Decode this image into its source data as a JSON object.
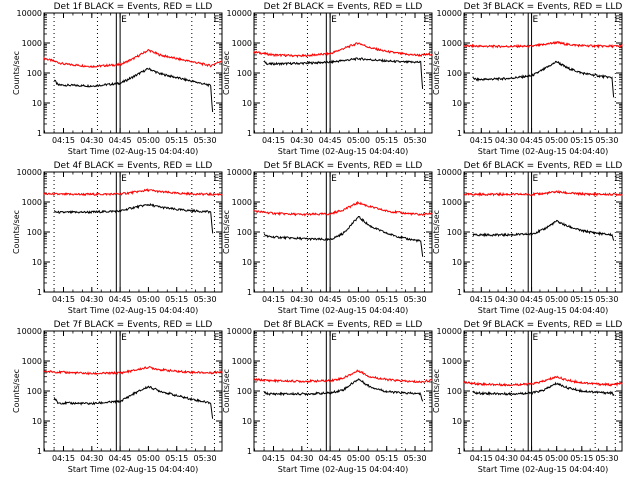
{
  "chart_data": [
    {
      "type": "line",
      "title": "Det 1f BLACK = Events, RED = LLD",
      "xlabel": "Start Time (02-Aug-15 04:04:40)",
      "ylabel": "Counts/sec",
      "y_scale": "log",
      "ylim": [
        1,
        10000
      ],
      "xlim": [
        "04:04:40",
        "05:39:00"
      ],
      "x_ticks": [
        "04:15",
        "04:30",
        "04:45",
        "05:00",
        "05:15",
        "05:30"
      ],
      "y_ticks": [
        "1",
        "10",
        "100",
        "1000",
        "10000"
      ],
      "marker_labels": [
        "E",
        "E"
      ],
      "series": [
        {
          "color": "#ff0000",
          "x": [
            "04:04:40",
            "04:15",
            "04:30",
            "04:45",
            "04:52",
            "05:00",
            "05:06",
            "05:15",
            "05:25",
            "05:33",
            "05:39"
          ],
          "values": [
            310,
            200,
            165,
            190,
            300,
            580,
            400,
            300,
            225,
            175,
            260
          ]
        },
        {
          "color": "#000000",
          "x": [
            "04:10",
            "04:12",
            "04:30",
            "04:45",
            "04:52",
            "05:00",
            "05:06",
            "05:15",
            "05:25",
            "05:33",
            "05:34"
          ],
          "values": [
            60,
            40,
            37,
            45,
            75,
            140,
            95,
            70,
            50,
            38,
            5
          ]
        }
      ]
    },
    {
      "type": "line",
      "title": "Det 2f BLACK = Events, RED = LLD",
      "xlabel": "Start Time (02-Aug-15 04:04:40)",
      "ylabel": "Counts/sec",
      "y_scale": "log",
      "ylim": [
        1,
        10000
      ],
      "xlim": [
        "04:04:40",
        "05:39:00"
      ],
      "x_ticks": [
        "04:15",
        "04:30",
        "04:45",
        "05:00",
        "05:15",
        "05:30"
      ],
      "y_ticks": [
        "1",
        "10",
        "100",
        "1000",
        "10000"
      ],
      "marker_labels": [
        "E",
        "E"
      ],
      "series": [
        {
          "color": "#ff0000",
          "x": [
            "04:04:40",
            "04:15",
            "04:30",
            "04:45",
            "04:52",
            "05:00",
            "05:06",
            "05:15",
            "05:25",
            "05:33",
            "05:39"
          ],
          "values": [
            500,
            400,
            370,
            440,
            650,
            1000,
            700,
            520,
            420,
            390,
            430
          ]
        },
        {
          "color": "#000000",
          "x": [
            "04:10",
            "04:12",
            "04:30",
            "04:45",
            "04:52",
            "05:00",
            "05:06",
            "05:15",
            "05:25",
            "05:33",
            "05:34"
          ],
          "values": [
            240,
            200,
            210,
            230,
            260,
            300,
            280,
            250,
            230,
            230,
            30
          ]
        }
      ]
    },
    {
      "type": "line",
      "title": "Det 3f BLACK = Events, RED = LLD",
      "xlabel": "Start Time (02-Aug-15 04:04:40)",
      "ylabel": "Counts/sec",
      "y_scale": "log",
      "ylim": [
        1,
        10000
      ],
      "xlim": [
        "04:04:40",
        "05:39:00"
      ],
      "x_ticks": [
        "04:15",
        "04:30",
        "04:45",
        "05:00",
        "05:15",
        "05:30"
      ],
      "y_ticks": [
        "1",
        "10",
        "100",
        "1000",
        "10000"
      ],
      "marker_labels": [
        "E",
        "E"
      ],
      "series": [
        {
          "color": "#ff0000",
          "x": [
            "04:04:40",
            "04:15",
            "04:30",
            "04:45",
            "04:52",
            "05:00",
            "05:06",
            "05:15",
            "05:25",
            "05:33",
            "05:39"
          ],
          "values": [
            800,
            780,
            770,
            780,
            880,
            1050,
            900,
            820,
            790,
            780,
            790
          ]
        },
        {
          "color": "#000000",
          "x": [
            "04:10",
            "04:12",
            "04:30",
            "04:45",
            "04:52",
            "05:00",
            "05:06",
            "05:15",
            "05:25",
            "05:33",
            "05:34"
          ],
          "values": [
            70,
            60,
            65,
            80,
            130,
            240,
            150,
            100,
            80,
            70,
            16
          ]
        }
      ]
    },
    {
      "type": "line",
      "title": "Det 4f BLACK = Events, RED = LLD",
      "xlabel": "Start Time (02-Aug-15 04:04:40)",
      "ylabel": "Counts/sec",
      "y_scale": "log",
      "ylim": [
        1,
        10000
      ],
      "xlim": [
        "04:04:40",
        "05:39:00"
      ],
      "x_ticks": [
        "04:15",
        "04:30",
        "04:45",
        "05:00",
        "05:15",
        "05:30"
      ],
      "y_ticks": [
        "1",
        "10",
        "100",
        "1000",
        "10000"
      ],
      "marker_labels": [
        "E",
        "E"
      ],
      "series": [
        {
          "color": "#ff0000",
          "x": [
            "04:04:40",
            "04:15",
            "04:30",
            "04:45",
            "04:52",
            "05:00",
            "05:06",
            "05:15",
            "05:25",
            "05:33",
            "05:39"
          ],
          "values": [
            1850,
            1800,
            1800,
            1850,
            2100,
            2500,
            2200,
            1950,
            1850,
            1800,
            1800
          ]
        },
        {
          "color": "#000000",
          "x": [
            "04:10",
            "04:12",
            "04:30",
            "04:45",
            "04:52",
            "05:00",
            "05:06",
            "05:15",
            "05:25",
            "05:33",
            "05:34"
          ],
          "values": [
            480,
            450,
            460,
            500,
            650,
            820,
            680,
            560,
            500,
            470,
            90
          ]
        }
      ]
    },
    {
      "type": "line",
      "title": "Det 5f BLACK = Events, RED = LLD",
      "xlabel": "Start Time (02-Aug-15 04:04:40)",
      "ylabel": "Counts/sec",
      "y_scale": "log",
      "ylim": [
        1,
        10000
      ],
      "xlim": [
        "04:04:40",
        "05:39:00"
      ],
      "x_ticks": [
        "04:15",
        "04:30",
        "04:45",
        "05:00",
        "05:15",
        "05:30"
      ],
      "y_ticks": [
        "1",
        "10",
        "100",
        "1000",
        "10000"
      ],
      "marker_labels": [
        "E",
        "E"
      ],
      "series": [
        {
          "color": "#ff0000",
          "x": [
            "04:04:40",
            "04:15",
            "04:30",
            "04:45",
            "04:52",
            "05:00",
            "05:06",
            "05:15",
            "05:25",
            "05:33",
            "05:39"
          ],
          "values": [
            500,
            420,
            380,
            400,
            550,
            950,
            700,
            500,
            420,
            380,
            420
          ]
        },
        {
          "color": "#000000",
          "x": [
            "04:10",
            "04:12",
            "04:30",
            "04:45",
            "04:52",
            "05:00",
            "05:06",
            "05:15",
            "05:25",
            "05:33",
            "05:34"
          ],
          "values": [
            85,
            70,
            60,
            55,
            90,
            320,
            160,
            90,
            60,
            50,
            15
          ]
        }
      ]
    },
    {
      "type": "line",
      "title": "Det 6f BLACK = Events, RED = LLD",
      "xlabel": "Start Time (02-Aug-15 04:04:40)",
      "ylabel": "Counts/sec",
      "y_scale": "log",
      "ylim": [
        1,
        10000
      ],
      "xlim": [
        "04:04:40",
        "05:39:00"
      ],
      "x_ticks": [
        "04:15",
        "04:30",
        "04:45",
        "05:00",
        "05:15",
        "05:30"
      ],
      "y_ticks": [
        "1",
        "10",
        "100",
        "1000",
        "10000"
      ],
      "marker_labels": [
        "E",
        "E"
      ],
      "series": [
        {
          "color": "#ff0000",
          "x": [
            "04:04:40",
            "04:15",
            "04:30",
            "04:45",
            "04:52",
            "05:00",
            "05:06",
            "05:15",
            "05:25",
            "05:33",
            "05:39"
          ],
          "values": [
            1800,
            1800,
            1800,
            1800,
            1900,
            2200,
            2000,
            1850,
            1800,
            1800,
            1800
          ]
        },
        {
          "color": "#000000",
          "x": [
            "04:10",
            "04:12",
            "04:30",
            "04:45",
            "04:52",
            "05:00",
            "05:06",
            "05:15",
            "05:25",
            "05:33",
            "05:34"
          ],
          "values": [
            80,
            80,
            80,
            85,
            120,
            230,
            160,
            110,
            90,
            80,
            55
          ]
        }
      ]
    },
    {
      "type": "line",
      "title": "Det 7f BLACK = Events, RED = LLD",
      "xlabel": "Start Time (02-Aug-15 04:04:40)",
      "ylabel": "Counts/sec",
      "y_scale": "log",
      "ylim": [
        1,
        10000
      ],
      "xlim": [
        "04:04:40",
        "05:39:00"
      ],
      "x_ticks": [
        "04:15",
        "04:30",
        "04:45",
        "05:00",
        "05:15",
        "05:30"
      ],
      "y_ticks": [
        "1",
        "10",
        "100",
        "1000",
        "10000"
      ],
      "marker_labels": [
        "E",
        "E"
      ],
      "series": [
        {
          "color": "#ff0000",
          "x": [
            "04:04:40",
            "04:15",
            "04:30",
            "04:45",
            "04:52",
            "05:00",
            "05:06",
            "05:15",
            "05:25",
            "05:33",
            "05:39"
          ],
          "values": [
            450,
            420,
            380,
            400,
            480,
            620,
            520,
            450,
            420,
            400,
            450
          ]
        },
        {
          "color": "#000000",
          "x": [
            "04:10",
            "04:12",
            "04:30",
            "04:45",
            "04:52",
            "05:00",
            "05:06",
            "05:15",
            "05:25",
            "05:33",
            "05:34"
          ],
          "values": [
            60,
            40,
            38,
            45,
            80,
            140,
            100,
            70,
            50,
            40,
            12
          ]
        }
      ]
    },
    {
      "type": "line",
      "title": "Det 8f BLACK = Events, RED = LLD",
      "xlabel": "Start Time (02-Aug-15 04:04:40)",
      "ylabel": "Counts/sec",
      "y_scale": "log",
      "ylim": [
        1,
        10000
      ],
      "xlim": [
        "04:04:40",
        "05:39:00"
      ],
      "x_ticks": [
        "04:15",
        "04:30",
        "04:45",
        "05:00",
        "05:15",
        "05:30"
      ],
      "y_ticks": [
        "1",
        "10",
        "100",
        "1000",
        "10000"
      ],
      "marker_labels": [
        "E",
        "E"
      ],
      "series": [
        {
          "color": "#ff0000",
          "x": [
            "04:04:40",
            "04:15",
            "04:30",
            "04:45",
            "04:52",
            "05:00",
            "05:06",
            "05:15",
            "05:25",
            "05:33",
            "05:39"
          ],
          "values": [
            240,
            220,
            210,
            220,
            270,
            480,
            300,
            240,
            210,
            200,
            230
          ]
        },
        {
          "color": "#000000",
          "x": [
            "04:10",
            "04:12",
            "04:30",
            "04:45",
            "04:52",
            "05:00",
            "05:06",
            "05:15",
            "05:25",
            "05:33",
            "05:34"
          ],
          "values": [
            90,
            80,
            80,
            85,
            110,
            250,
            140,
            95,
            85,
            80,
            45
          ]
        }
      ]
    },
    {
      "type": "line",
      "title": "Det 9f BLACK = Events, RED = LLD",
      "xlabel": "Start Time (02-Aug-15 04:04:40)",
      "ylabel": "Counts/sec",
      "y_scale": "log",
      "ylim": [
        1,
        10000
      ],
      "xlim": [
        "04:04:40",
        "05:39:00"
      ],
      "x_ticks": [
        "04:15",
        "04:30",
        "04:45",
        "05:00",
        "05:15",
        "05:30"
      ],
      "y_ticks": [
        "1",
        "10",
        "100",
        "1000",
        "10000"
      ],
      "marker_labels": [
        "E",
        "E"
      ],
      "series": [
        {
          "color": "#ff0000",
          "x": [
            "04:04:40",
            "04:15",
            "04:30",
            "04:45",
            "04:52",
            "05:00",
            "05:06",
            "05:15",
            "05:25",
            "05:33",
            "05:39"
          ],
          "values": [
            190,
            170,
            160,
            170,
            210,
            300,
            230,
            190,
            170,
            160,
            180
          ]
        },
        {
          "color": "#000000",
          "x": [
            "04:10",
            "04:12",
            "04:30",
            "04:45",
            "04:52",
            "05:00",
            "05:06",
            "05:15",
            "05:25",
            "05:33",
            "05:34"
          ],
          "values": [
            90,
            85,
            80,
            85,
            105,
            180,
            130,
            100,
            90,
            85,
            70
          ]
        }
      ]
    }
  ],
  "overlays": {
    "dotted_lines_x": [
      "04:10",
      "04:33",
      "05:23",
      "05:35"
    ],
    "double_lines_x": [
      "04:43",
      "04:45"
    ],
    "marker_x": [
      "04:45",
      "05:34"
    ]
  }
}
